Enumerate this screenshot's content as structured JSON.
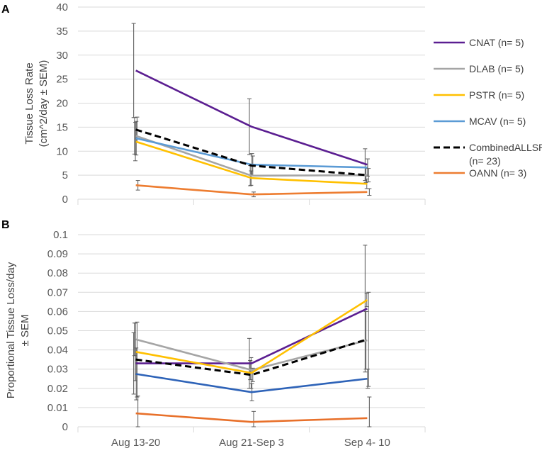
{
  "chart_data": [
    {
      "panel": "A",
      "type": "line",
      "categories": [
        "Aug 13-20",
        "Aug 21-Sep 3",
        "Sep 4- 10"
      ],
      "ylabel_lines": [
        "Tissue Loss Rate",
        "(cm^2/day ± SEM)"
      ],
      "ylim": [
        0,
        40
      ],
      "yticks": [
        "0",
        "5",
        "10",
        "15",
        "20",
        "25",
        "30",
        "35",
        "40"
      ],
      "grid": true,
      "series": [
        {
          "name": "CNAT (n= 5)",
          "color": "#5b1e91",
          "dashed": false,
          "values": [
            26.8,
            15.1,
            7.2
          ],
          "err": [
            9.8,
            5.8,
            3.3
          ]
        },
        {
          "name": "DLAB (n= 5)",
          "color": "#a5a5a5",
          "dashed": false,
          "values": [
            13.2,
            4.9,
            5.0
          ],
          "err": [
            3.8,
            2.1,
            1.5
          ]
        },
        {
          "name": "PSTR (n= 5)",
          "color": "#ffc000",
          "dashed": false,
          "values": [
            12.0,
            4.4,
            3.2
          ],
          "err": [
            4.0,
            1.5,
            1.0
          ]
        },
        {
          "name": "MCAV (n= 5)",
          "color": "#5b9bd5",
          "dashed": false,
          "values": [
            12.7,
            7.2,
            6.6
          ],
          "err": [
            3.5,
            2.3,
            1.8
          ]
        },
        {
          "name": "CombinedALLSPP",
          "name2": "(n= 23)",
          "color": "#000000",
          "dashed": true,
          "values": [
            14.5,
            7.0,
            5.0
          ],
          "err": [
            2.6,
            2.0,
            1.4
          ]
        },
        {
          "name": "OANN (n= 3)",
          "color": "#ed7d31",
          "dashed": false,
          "values": [
            2.9,
            1.0,
            1.5
          ],
          "err": [
            1.0,
            0.5,
            0.7
          ]
        }
      ]
    },
    {
      "panel": "B",
      "type": "line",
      "categories": [
        "Aug 13-20",
        "Aug 21-Sep 3",
        "Sep 4- 10"
      ],
      "ylabel_lines": [
        "Proportional Tissue Loss/day",
        "± SEM"
      ],
      "ylim": [
        0,
        0.1
      ],
      "yticks": [
        "0",
        "0.01",
        "0.02",
        "0.03",
        "0.04",
        "0.05",
        "0.06",
        "0.07",
        "0.08",
        "0.09",
        "0.1"
      ],
      "grid": true,
      "series": [
        {
          "name": "CNAT",
          "color": "#5b1e91",
          "dashed": false,
          "values": [
            0.033,
            0.033,
            0.0615
          ],
          "err": [
            0.016,
            0.013,
            0.033
          ]
        },
        {
          "name": "DLAB",
          "color": "#a5a5a5",
          "dashed": false,
          "values": [
            0.0455,
            0.0295,
            0.045
          ],
          "err": [
            0.0085,
            0.005,
            0.015
          ]
        },
        {
          "name": "PSTR",
          "color": "#ffc000",
          "dashed": false,
          "values": [
            0.039,
            0.028,
            0.066
          ],
          "err": [
            0.015,
            0.008,
            0.0035
          ]
        },
        {
          "name": "MCAV",
          "color": "#2e63b8",
          "dashed": false,
          "values": [
            0.0275,
            0.018,
            0.025
          ],
          "err": [
            0.0135,
            0.0045,
            0.005
          ]
        },
        {
          "name": "CombinedALLSPP",
          "color": "#000000",
          "dashed": true,
          "values": [
            0.035,
            0.027,
            0.0455
          ],
          "err": [
            0.0195,
            0.0035,
            0.0245
          ]
        },
        {
          "name": "OANN",
          "color": "#e8702a",
          "dashed": false,
          "values": [
            0.007,
            0.0025,
            0.0045
          ],
          "err": [
            0.009,
            0.0055,
            0.011
          ]
        }
      ]
    }
  ]
}
